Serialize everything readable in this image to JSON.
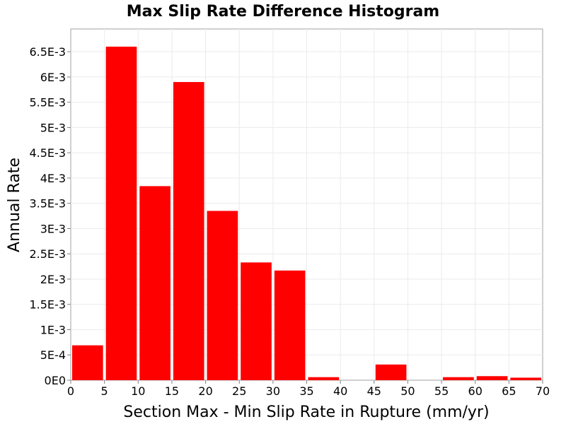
{
  "chart_data": {
    "type": "bar",
    "title": "Max Slip Rate Difference Histogram",
    "xlabel": "Section Max - Min Slip Rate in Rupture (mm/yr)",
    "ylabel": "Annual Rate",
    "xlim": [
      0,
      70
    ],
    "ylim": [
      0,
      0.00695
    ],
    "grid": true,
    "bar_color": "#ff0000",
    "bin_width": 5,
    "bins": [
      {
        "start": 0,
        "end": 5,
        "value": 0.00069
      },
      {
        "start": 5,
        "end": 10,
        "value": 0.0066
      },
      {
        "start": 10,
        "end": 15,
        "value": 0.00384
      },
      {
        "start": 15,
        "end": 20,
        "value": 0.0059
      },
      {
        "start": 20,
        "end": 25,
        "value": 0.00335
      },
      {
        "start": 25,
        "end": 30,
        "value": 0.00233
      },
      {
        "start": 30,
        "end": 35,
        "value": 0.00217
      },
      {
        "start": 35,
        "end": 40,
        "value": 6e-05
      },
      {
        "start": 40,
        "end": 45,
        "value": 0
      },
      {
        "start": 45,
        "end": 50,
        "value": 0.00031
      },
      {
        "start": 50,
        "end": 55,
        "value": 0
      },
      {
        "start": 55,
        "end": 60,
        "value": 6e-05
      },
      {
        "start": 60,
        "end": 65,
        "value": 8e-05
      },
      {
        "start": 65,
        "end": 70,
        "value": 5e-05
      }
    ],
    "x_ticks": [
      {
        "value": 0,
        "label": "0"
      },
      {
        "value": 5,
        "label": "5"
      },
      {
        "value": 10,
        "label": "10"
      },
      {
        "value": 15,
        "label": "15"
      },
      {
        "value": 20,
        "label": "20"
      },
      {
        "value": 25,
        "label": "25"
      },
      {
        "value": 30,
        "label": "30"
      },
      {
        "value": 35,
        "label": "35"
      },
      {
        "value": 40,
        "label": "40"
      },
      {
        "value": 45,
        "label": "45"
      },
      {
        "value": 50,
        "label": "50"
      },
      {
        "value": 55,
        "label": "55"
      },
      {
        "value": 60,
        "label": "60"
      },
      {
        "value": 65,
        "label": "65"
      },
      {
        "value": 70,
        "label": "70"
      }
    ],
    "y_ticks": [
      {
        "value": 0,
        "label": "0E0"
      },
      {
        "value": 0.0005,
        "label": "5E-4"
      },
      {
        "value": 0.001,
        "label": "1E-3"
      },
      {
        "value": 0.0015,
        "label": "1.5E-3"
      },
      {
        "value": 0.002,
        "label": "2E-3"
      },
      {
        "value": 0.0025,
        "label": "2.5E-3"
      },
      {
        "value": 0.003,
        "label": "3E-3"
      },
      {
        "value": 0.0035,
        "label": "3.5E-3"
      },
      {
        "value": 0.004,
        "label": "4E-3"
      },
      {
        "value": 0.0045,
        "label": "4.5E-3"
      },
      {
        "value": 0.005,
        "label": "5E-3"
      },
      {
        "value": 0.0055,
        "label": "5.5E-3"
      },
      {
        "value": 0.006,
        "label": "6E-3"
      },
      {
        "value": 0.0065,
        "label": "6.5E-3"
      }
    ]
  }
}
